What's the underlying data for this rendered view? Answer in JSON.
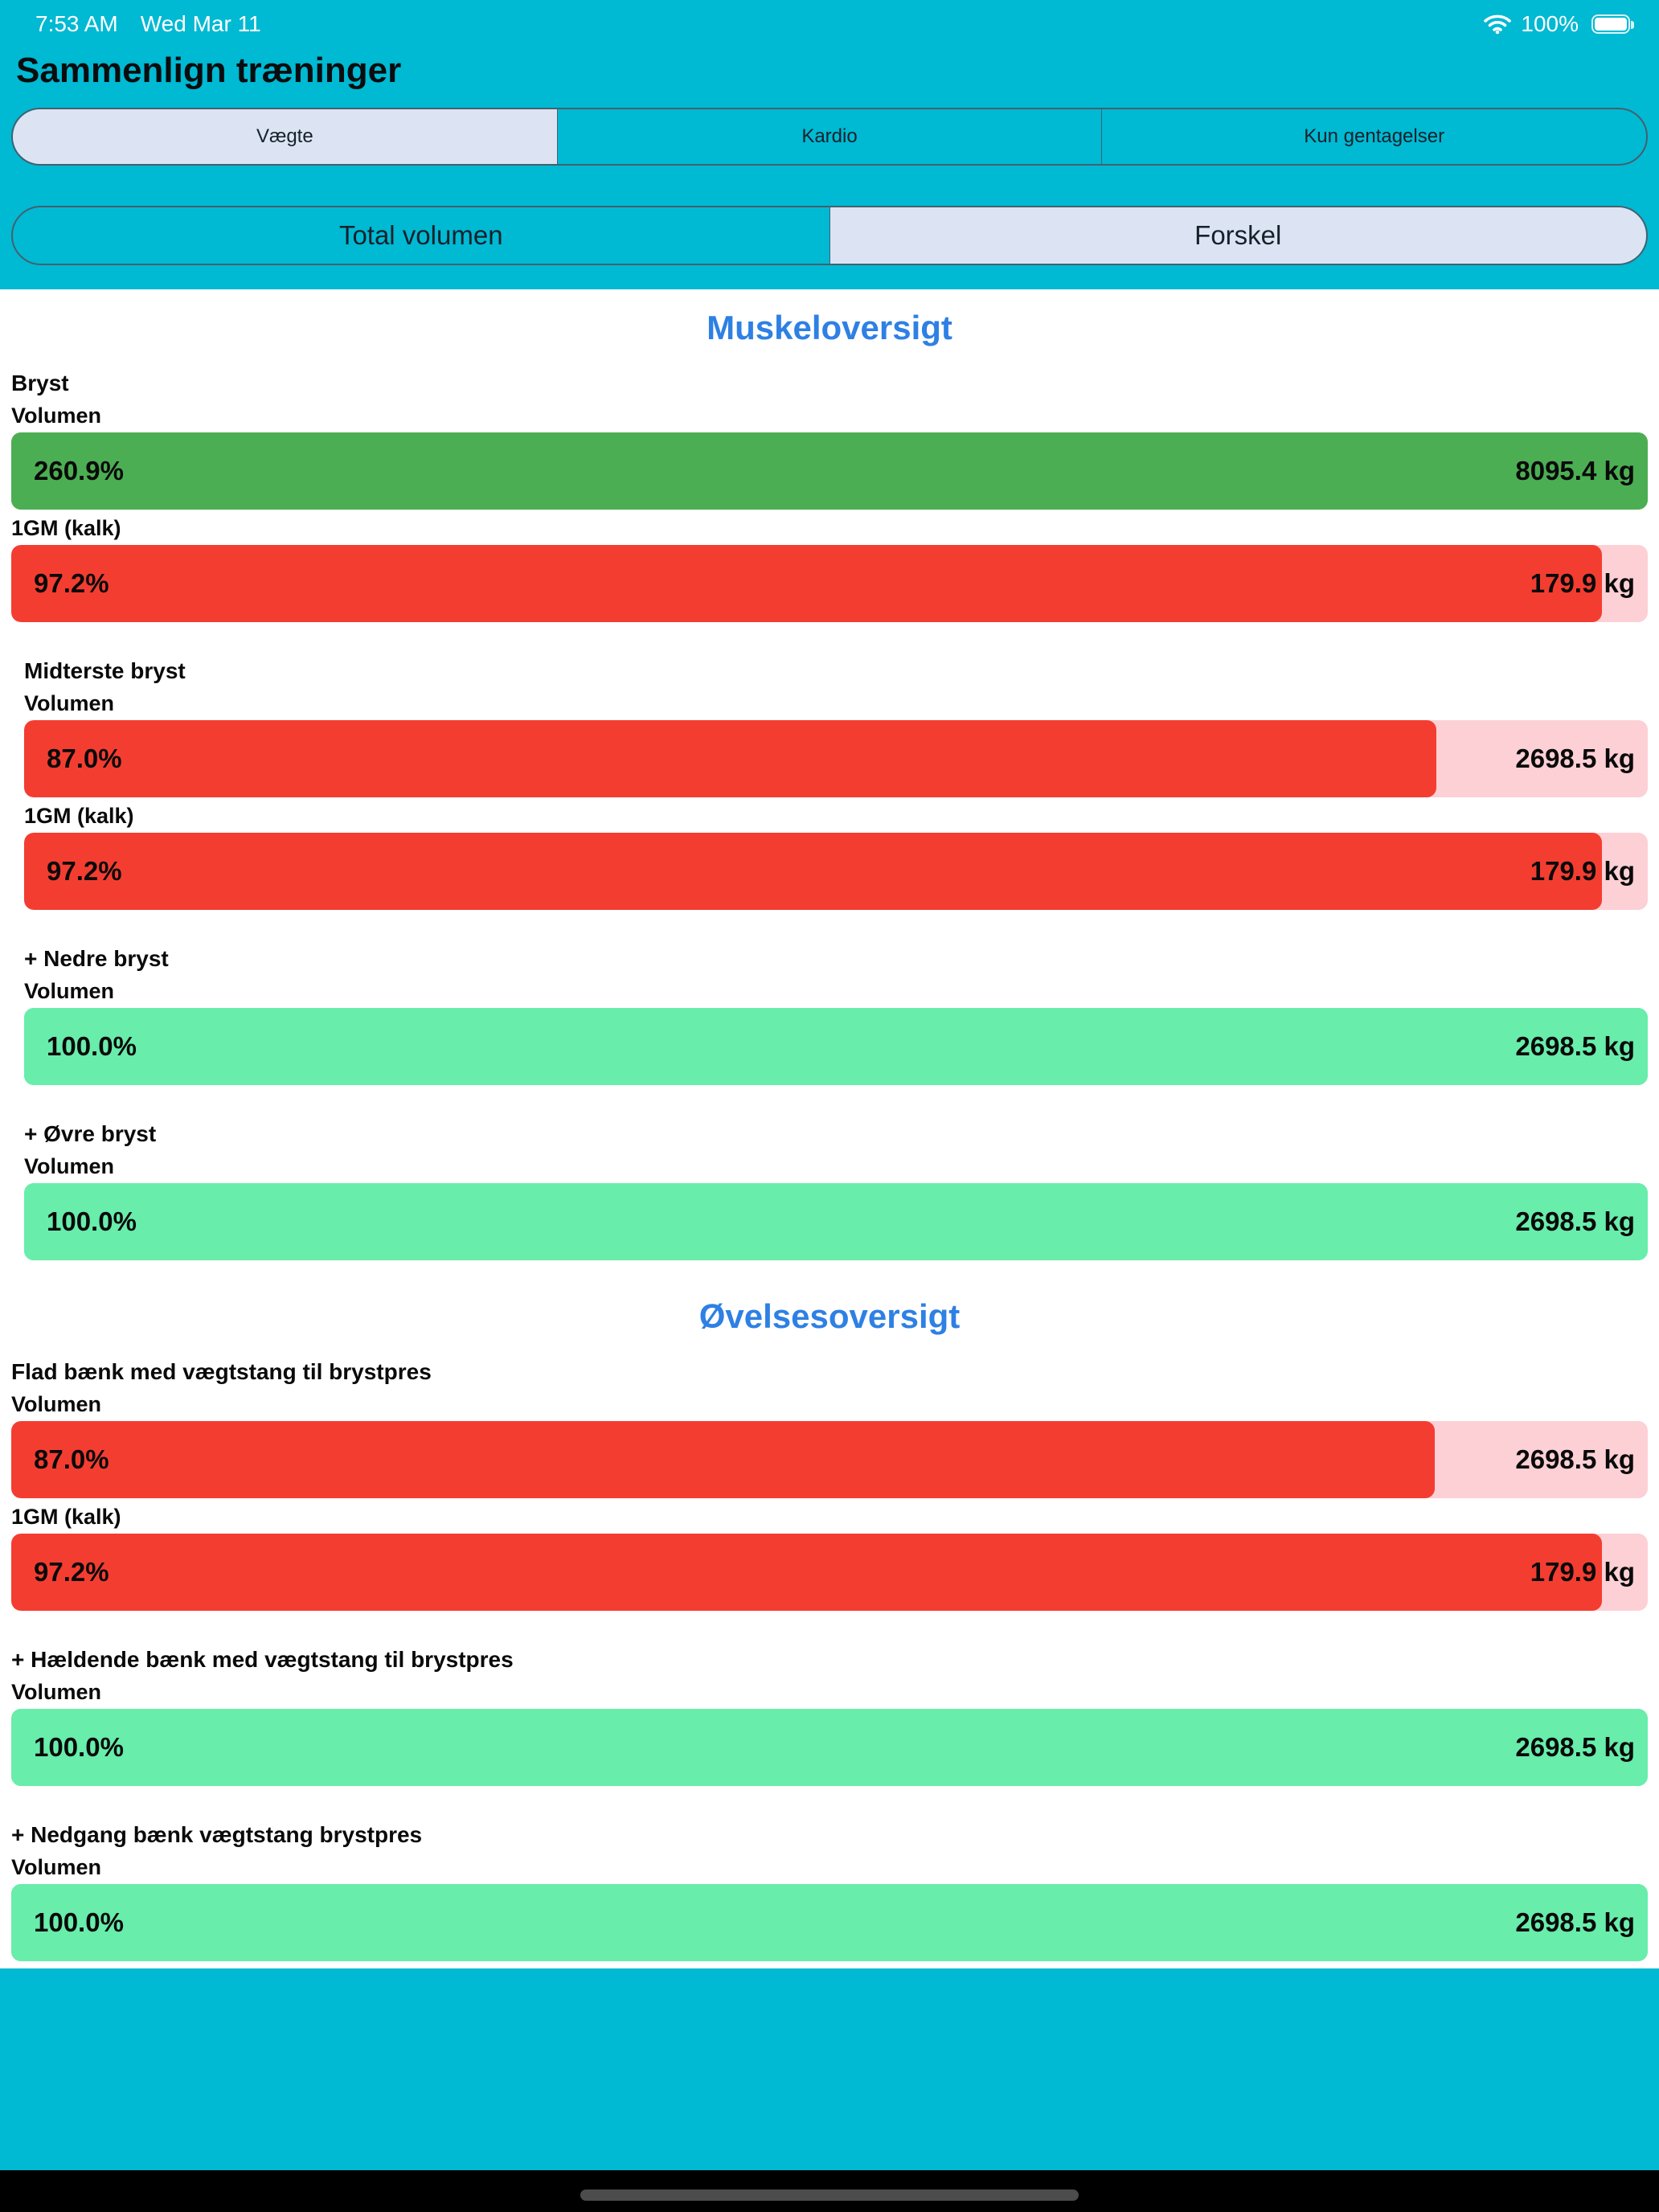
{
  "status_bar": {
    "time": "7:53 AM",
    "date": "Wed Mar 11",
    "wifi_icon": "wifi-icon",
    "battery_percent": "100%",
    "battery_icon": "battery-full-icon"
  },
  "header": {
    "title": "Sammenlign træninger"
  },
  "controls": {
    "mode_segments": [
      {
        "label": "Vægte",
        "selected": true
      },
      {
        "label": "Kardio",
        "selected": false
      },
      {
        "label": "Kun gentagelser",
        "selected": false
      }
    ],
    "view_segments": [
      {
        "label": "Total volumen",
        "selected": false
      },
      {
        "label": "Forskel",
        "selected": true
      }
    ]
  },
  "colors": {
    "background_cyan": "#00b9d3",
    "selected_segment": "#dce4f3",
    "heading_blue": "#2e80e4",
    "green": "#4cae52",
    "mint": "#68edab",
    "red": "#f43d31",
    "pink_track": "#fcd0d5"
  },
  "chart_data": {
    "type": "bar",
    "title": "Sammenlign træninger — Forskel",
    "sections": [
      {
        "title": "Muskeloversigt",
        "groups": [
          {
            "name": "Bryst",
            "indent": false,
            "metrics": [
              {
                "label": "Volumen",
                "percent": "260.9%",
                "percent_value": 260.9,
                "value": "8095.4 kg",
                "color": "green"
              },
              {
                "label": "1GM (kalk)",
                "percent": "97.2%",
                "percent_value": 97.2,
                "value": "179.9 kg",
                "color": "red"
              }
            ]
          },
          {
            "name": "Midterste bryst",
            "indent": true,
            "metrics": [
              {
                "label": "Volumen",
                "percent": "87.0%",
                "percent_value": 87.0,
                "value": "2698.5 kg",
                "color": "red"
              },
              {
                "label": "1GM (kalk)",
                "percent": "97.2%",
                "percent_value": 97.2,
                "value": "179.9 kg",
                "color": "red"
              }
            ]
          },
          {
            "name": "+ Nedre bryst",
            "indent": true,
            "metrics": [
              {
                "label": "Volumen",
                "percent": "100.0%",
                "percent_value": 100.0,
                "value": "2698.5 kg",
                "color": "mint"
              }
            ]
          },
          {
            "name": "+ Øvre bryst",
            "indent": true,
            "metrics": [
              {
                "label": "Volumen",
                "percent": "100.0%",
                "percent_value": 100.0,
                "value": "2698.5 kg",
                "color": "mint"
              }
            ]
          }
        ]
      },
      {
        "title": "Øvelsesoversigt",
        "groups": [
          {
            "name": "Flad bænk med vægtstang til brystpres",
            "indent": false,
            "metrics": [
              {
                "label": "Volumen",
                "percent": "87.0%",
                "percent_value": 87.0,
                "value": "2698.5 kg",
                "color": "red"
              },
              {
                "label": "1GM (kalk)",
                "percent": "97.2%",
                "percent_value": 97.2,
                "value": "179.9 kg",
                "color": "red"
              }
            ]
          },
          {
            "name": "+ Hældende bænk med vægtstang til brystpres",
            "indent": false,
            "metrics": [
              {
                "label": "Volumen",
                "percent": "100.0%",
                "percent_value": 100.0,
                "value": "2698.5 kg",
                "color": "mint"
              }
            ]
          },
          {
            "name": "+ Nedgang bænk vægtstang brystpres",
            "indent": false,
            "metrics": [
              {
                "label": "Volumen",
                "percent": "100.0%",
                "percent_value": 100.0,
                "value": "2698.5 kg",
                "color": "mint"
              }
            ]
          }
        ]
      }
    ]
  }
}
